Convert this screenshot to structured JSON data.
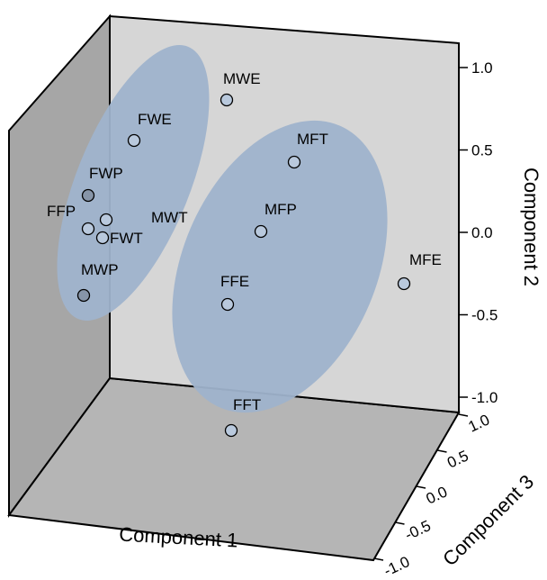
{
  "chart_data": {
    "type": "scatter",
    "projection": "3d",
    "title": "",
    "axes": {
      "x": {
        "label": "Component 1",
        "ticks": []
      },
      "y": {
        "label": "Component 2",
        "ticks": [
          "1.0",
          "0.5",
          "0.0",
          "-0.5",
          "-1.0"
        ],
        "range": [
          -1.0,
          1.0
        ]
      },
      "z": {
        "label": "Component 3",
        "ticks": [
          "1.0",
          "0.5",
          "0.0",
          "-0.5",
          "-1.0"
        ],
        "range": [
          -1.0,
          1.0
        ]
      }
    },
    "points": [
      {
        "label": "MWE",
        "y": 0.85,
        "shade": "light"
      },
      {
        "label": "FWE",
        "y": 0.55,
        "shade": "light"
      },
      {
        "label": "FWP",
        "y": 0.25,
        "shade": "dark"
      },
      {
        "label": "FFP",
        "y": 0.1,
        "shade": "light"
      },
      {
        "label": "MWT",
        "y": 0.15,
        "shade": "light"
      },
      {
        "label": "FWT",
        "y": 0.05,
        "shade": "light"
      },
      {
        "label": "MWP",
        "y": -0.32,
        "shade": "dark"
      },
      {
        "label": "MFT",
        "y": 0.48,
        "shade": "light"
      },
      {
        "label": "MFP",
        "y": 0.12,
        "shade": "light"
      },
      {
        "label": "FFE",
        "y": -0.43,
        "shade": "light"
      },
      {
        "label": "MFE",
        "y": -0.33,
        "shade": "light"
      },
      {
        "label": "FFT",
        "y": -1.1,
        "shade": "light"
      }
    ],
    "groups": [
      {
        "members": [
          "FWE",
          "FWP",
          "FFP",
          "FWT",
          "MWT",
          "MWP"
        ]
      },
      {
        "members": [
          "MFT",
          "MFP",
          "FFE",
          "FFT"
        ]
      }
    ],
    "colors": {
      "back_wall": "#d6d6d6",
      "side_wall": "#a6a6a6",
      "floor": "#b5b5b5",
      "ellipse": "#9fb3cc",
      "point_light": "#b9c9dd",
      "point_dark": "#8795a8"
    },
    "grid": false,
    "legend": "none"
  }
}
